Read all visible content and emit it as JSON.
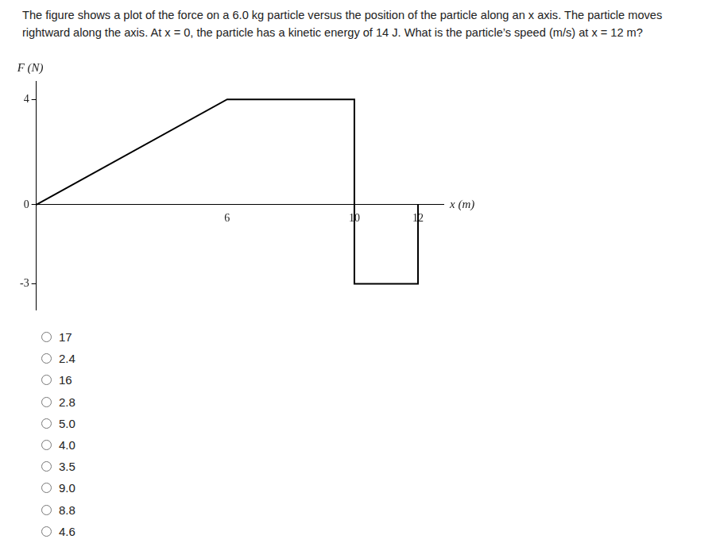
{
  "question": "The figure shows a plot of the force on a 6.0 kg particle versus the position of the particle along an x axis. The particle moves rightward along the axis. At x = 0, the particle has a kinetic energy of 14 J. What is the particle’s speed (m/s) at x = 12 m?",
  "chart_data": {
    "type": "line",
    "y_label": "F (N)",
    "x_label": "x (m)",
    "x": [
      0,
      6,
      10,
      10,
      12,
      12
    ],
    "values": [
      0,
      4,
      4,
      -3,
      -3,
      0
    ],
    "color": "#000000",
    "xlim": [
      0,
      12.8
    ],
    "ylim": [
      -4,
      4.7
    ],
    "xticks": [
      6,
      10,
      12
    ],
    "yticks": [
      -3,
      0,
      4
    ],
    "grid": false
  },
  "choices": [
    "17",
    "2.4",
    "16",
    "2.8",
    "5.0",
    "4.0",
    "3.5",
    "9.0",
    "8.8",
    "4.6"
  ]
}
